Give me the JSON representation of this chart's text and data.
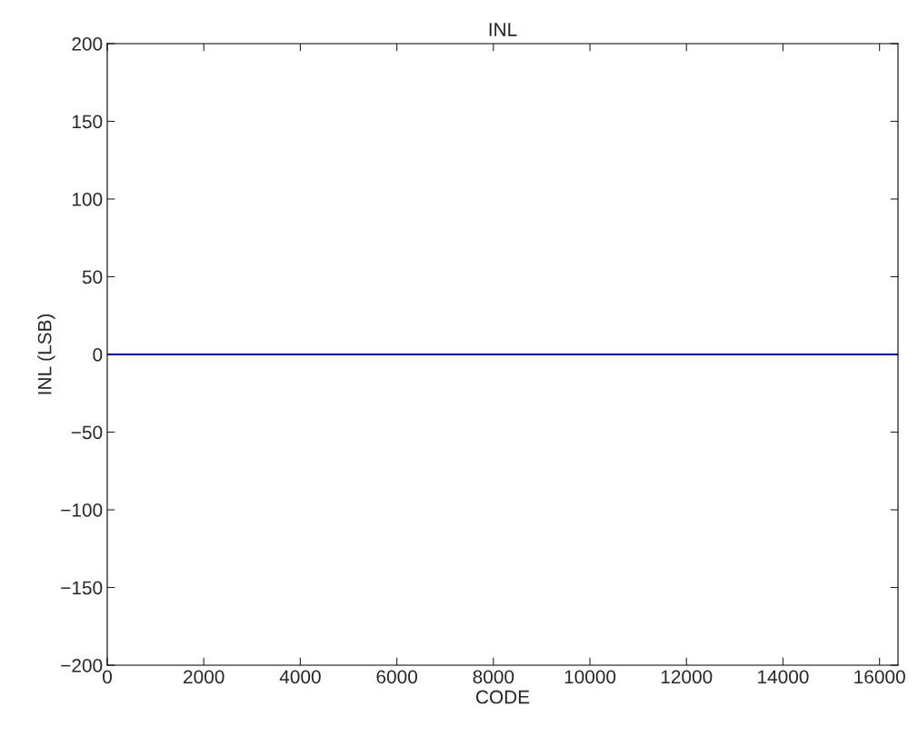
{
  "chart_data": {
    "type": "line",
    "title": "INL",
    "xlabel": "CODE",
    "ylabel": "INL (LSB)",
    "x": [
      0,
      16383
    ],
    "series": [
      {
        "color": "#0000ff",
        "values": [
          0,
          0
        ]
      }
    ],
    "xlim": [
      0,
      16383
    ],
    "xticks": [
      0,
      2000,
      4000,
      6000,
      8000,
      10000,
      12000,
      14000,
      16000
    ],
    "ylim": [
      -200,
      200
    ],
    "yticks": [
      -200,
      -150,
      -100,
      -50,
      0,
      50,
      100,
      150,
      200
    ],
    "grid": false,
    "legend": false,
    "marker": "none",
    "line_style": "solid"
  }
}
